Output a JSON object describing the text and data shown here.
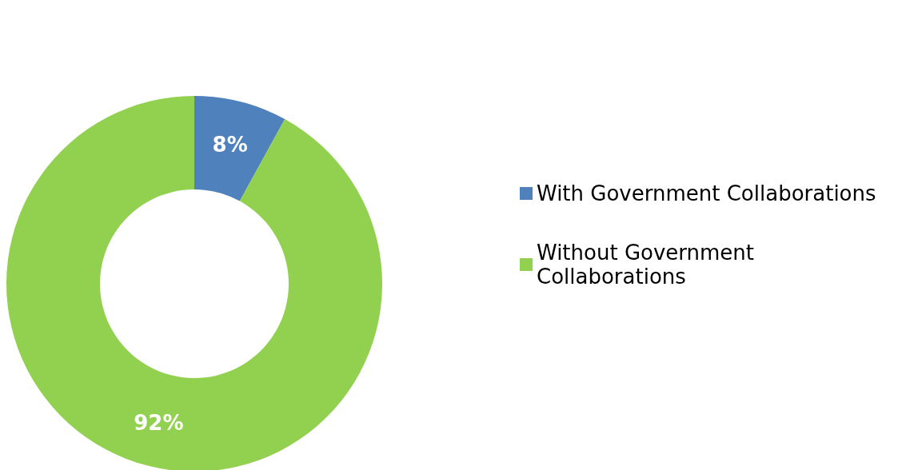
{
  "chart_data": {
    "type": "donut",
    "categories": [
      "With Government Collaborations",
      "Without Government Collaborations"
    ],
    "values": [
      8,
      92
    ],
    "colors": [
      "#4f81bd",
      "#92d050"
    ],
    "value_labels": [
      "8%",
      "92%"
    ],
    "legend": "right"
  }
}
